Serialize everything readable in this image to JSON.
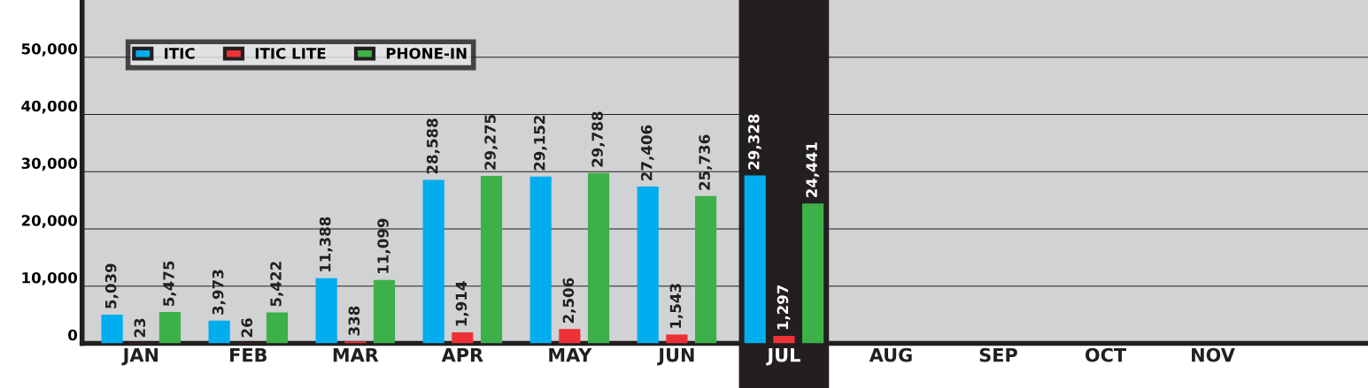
{
  "chart_data": {
    "type": "bar",
    "categories": [
      "JAN",
      "FEB",
      "MAR",
      "APR",
      "MAY",
      "JUN",
      "JUL",
      "AUG",
      "SEP",
      "OCT",
      "NOV"
    ],
    "series": [
      {
        "name": "ITIC",
        "color": "#00aeef",
        "values": [
          5039,
          3973,
          11388,
          28588,
          29152,
          27406,
          29328,
          null,
          null,
          null,
          null
        ],
        "value_labels": [
          "5,039",
          "3,973",
          "11,388",
          "28,588",
          "29,152",
          "27,406",
          "29,328",
          null,
          null,
          null,
          null
        ]
      },
      {
        "name": "ITIC LITE",
        "color": "#ed3237",
        "values": [
          23,
          26,
          338,
          1914,
          2506,
          1543,
          1297,
          null,
          null,
          null,
          null
        ],
        "value_labels": [
          "23",
          "26",
          "338",
          "1,914",
          "2,506",
          "1,543",
          "1,297",
          null,
          null,
          null,
          null
        ]
      },
      {
        "name": "PHONE-IN",
        "color": "#3db049",
        "values": [
          5475,
          5422,
          11099,
          29275,
          29788,
          25736,
          24441,
          null,
          null,
          null,
          null
        ],
        "value_labels": [
          "5,475",
          "5,422",
          "11,099",
          "29,275",
          "29,788",
          "25,736",
          "24,441",
          null,
          null,
          null,
          null
        ]
      }
    ],
    "ylim": [
      0,
      60000
    ],
    "yticks": [
      0,
      {
        "value": 10000,
        "label": "10,000"
      },
      {
        "value": 20000,
        "label": "20,000"
      },
      {
        "value": 30000,
        "label": "30,000"
      },
      {
        "value": 40000,
        "label": "40,000"
      },
      {
        "value": 50000,
        "label": "50,000"
      }
    ],
    "grid": "y",
    "legend": "top left",
    "bands": [
      {
        "axis": "x",
        "from": "JUL",
        "to": "JUL",
        "color": "#231f20"
      }
    ]
  }
}
